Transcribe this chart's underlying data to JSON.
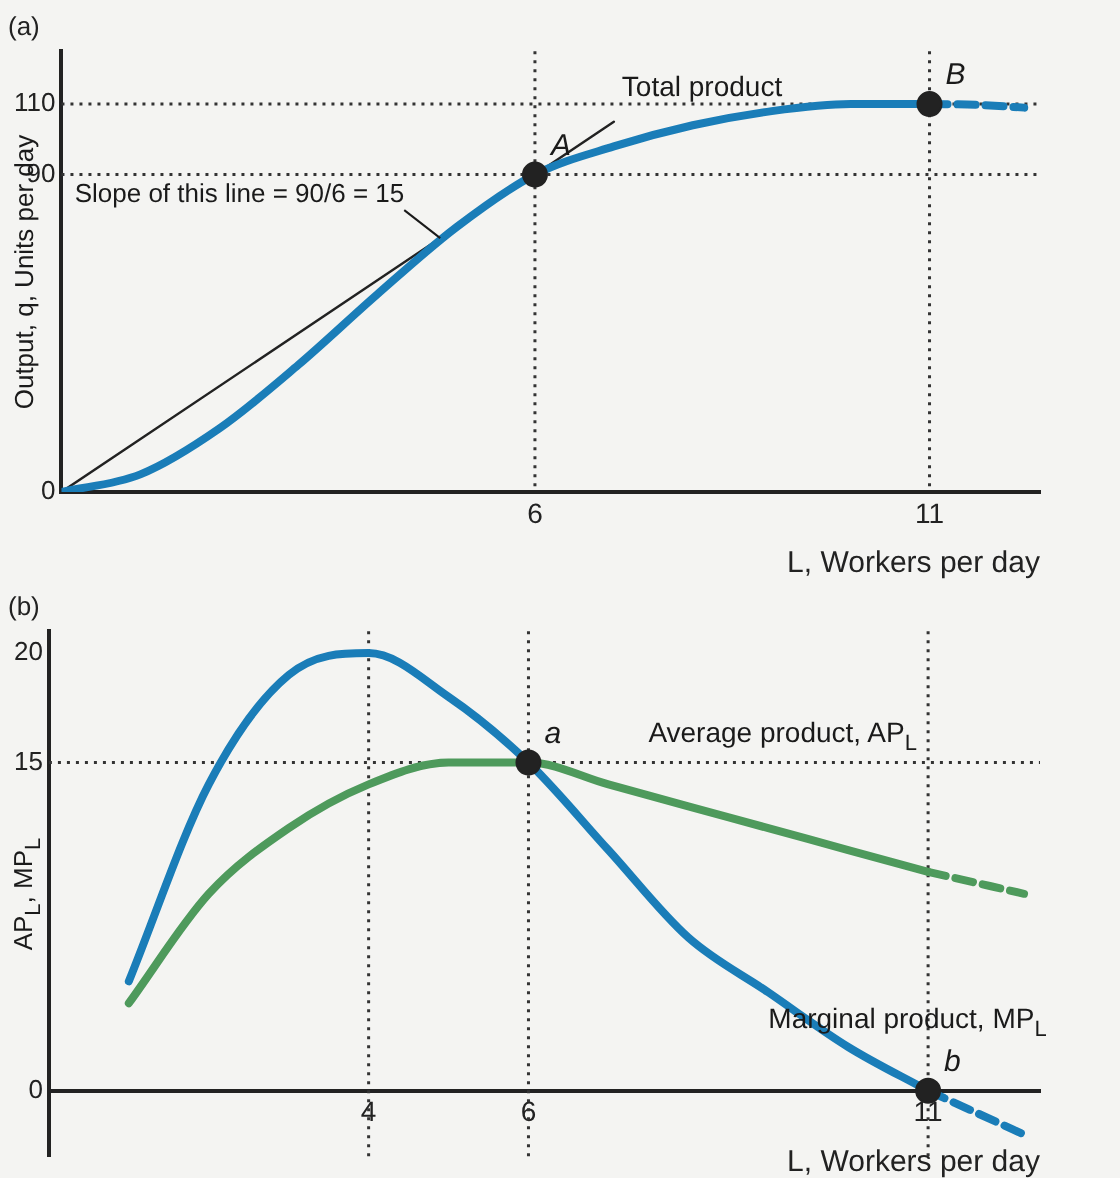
{
  "chart_data": [
    {
      "type": "line",
      "title": "(a)",
      "xlabel": "L, Workers per day",
      "ylabel": "Output, q, Units per day",
      "xlim": [
        0,
        12.4
      ],
      "xticks": [
        6,
        11
      ],
      "ylim": [
        0,
        125
      ],
      "yticks": [
        0,
        90,
        110
      ],
      "grid": false,
      "legend": false,
      "marker": "none",
      "line_style": "solid",
      "series": [
        {
          "name": "Total product",
          "color": "#1a7db8",
          "x": [
            0,
            1,
            2,
            3,
            4,
            5,
            6,
            7,
            8,
            9,
            10,
            11
          ],
          "values": [
            0,
            5,
            18,
            36,
            56,
            75,
            90,
            98,
            104,
            108,
            110,
            110
          ]
        },
        {
          "color": "#1a7db8",
          "line_style": "dashed",
          "x": [
            11,
            11.6,
            12.2
          ],
          "values": [
            110,
            109.8,
            109
          ]
        },
        {
          "color": "#222222",
          "x": [
            0,
            7
          ],
          "values": [
            0,
            105
          ]
        },
        {
          "type": "scatter",
          "marker": "circle",
          "color": "#222222",
          "x": [
            6,
            11
          ],
          "values": [
            90,
            110
          ]
        }
      ],
      "ref_lines": [
        {
          "axis": "y",
          "value": 110,
          "line_style": "dotted"
        },
        {
          "axis": "y",
          "value": 90,
          "line_style": "dotted"
        },
        {
          "axis": "x",
          "value": 6,
          "line_style": "dotted"
        },
        {
          "axis": "x",
          "value": 11,
          "line_style": "dotted"
        }
      ],
      "annotations": [
        {
          "text": "A",
          "x": 6,
          "y": 90
        },
        {
          "text": "B",
          "x": 11,
          "y": 110
        },
        {
          "text": "Slope of this line = 90/6 = 15",
          "x": 4.8,
          "y": 72
        }
      ]
    },
    {
      "type": "line",
      "title": "(b)",
      "xlabel": "L, Workers per day",
      "ylabel": "AP$_{L}$, MP$_{L}$",
      "xlim": [
        0,
        12.4
      ],
      "xticks": [
        4,
        6,
        11
      ],
      "ylim": [
        -3,
        21
      ],
      "yticks": [
        0,
        15,
        20
      ],
      "grid": false,
      "legend": false,
      "marker": "none",
      "line_style": "solid",
      "series": [
        {
          "name": "Marginal product, MP$_{L}$",
          "color": "#1a7db8",
          "x": [
            1,
            2,
            3,
            4,
            5,
            6,
            7,
            8,
            9,
            10,
            11
          ],
          "values": [
            5,
            14,
            19,
            20,
            18,
            15,
            11,
            7,
            4.5,
            2,
            0
          ]
        },
        {
          "name": "Average product, AP$_{L}$",
          "color": "#4e9a5c",
          "x": [
            1,
            2,
            3,
            4,
            5,
            6,
            7,
            8,
            9,
            10,
            11
          ],
          "values": [
            4,
            9,
            12,
            14,
            15,
            15,
            14,
            13,
            12,
            11,
            10
          ]
        },
        {
          "color": "#1a7db8",
          "line_style": "dashed",
          "x": [
            11,
            12.2
          ],
          "values": [
            0,
            -2
          ]
        },
        {
          "color": "#4e9a5c",
          "line_style": "dashed",
          "x": [
            11,
            12.2
          ],
          "values": [
            10,
            9
          ]
        },
        {
          "type": "scatter",
          "marker": "circle",
          "color": "#222222",
          "x": [
            6,
            11
          ],
          "values": [
            15,
            0
          ]
        }
      ],
      "ref_lines": [
        {
          "axis": "y",
          "value": 15,
          "line_style": "dotted"
        },
        {
          "axis": "x",
          "value": 4,
          "line_style": "dotted"
        },
        {
          "axis": "x",
          "value": 6,
          "line_style": "dotted"
        },
        {
          "axis": "x",
          "value": 11,
          "line_style": "dotted"
        }
      ],
      "annotations": [
        {
          "text": "a",
          "x": 6,
          "y": 15
        },
        {
          "text": "b",
          "x": 11,
          "y": 0
        }
      ]
    }
  ]
}
